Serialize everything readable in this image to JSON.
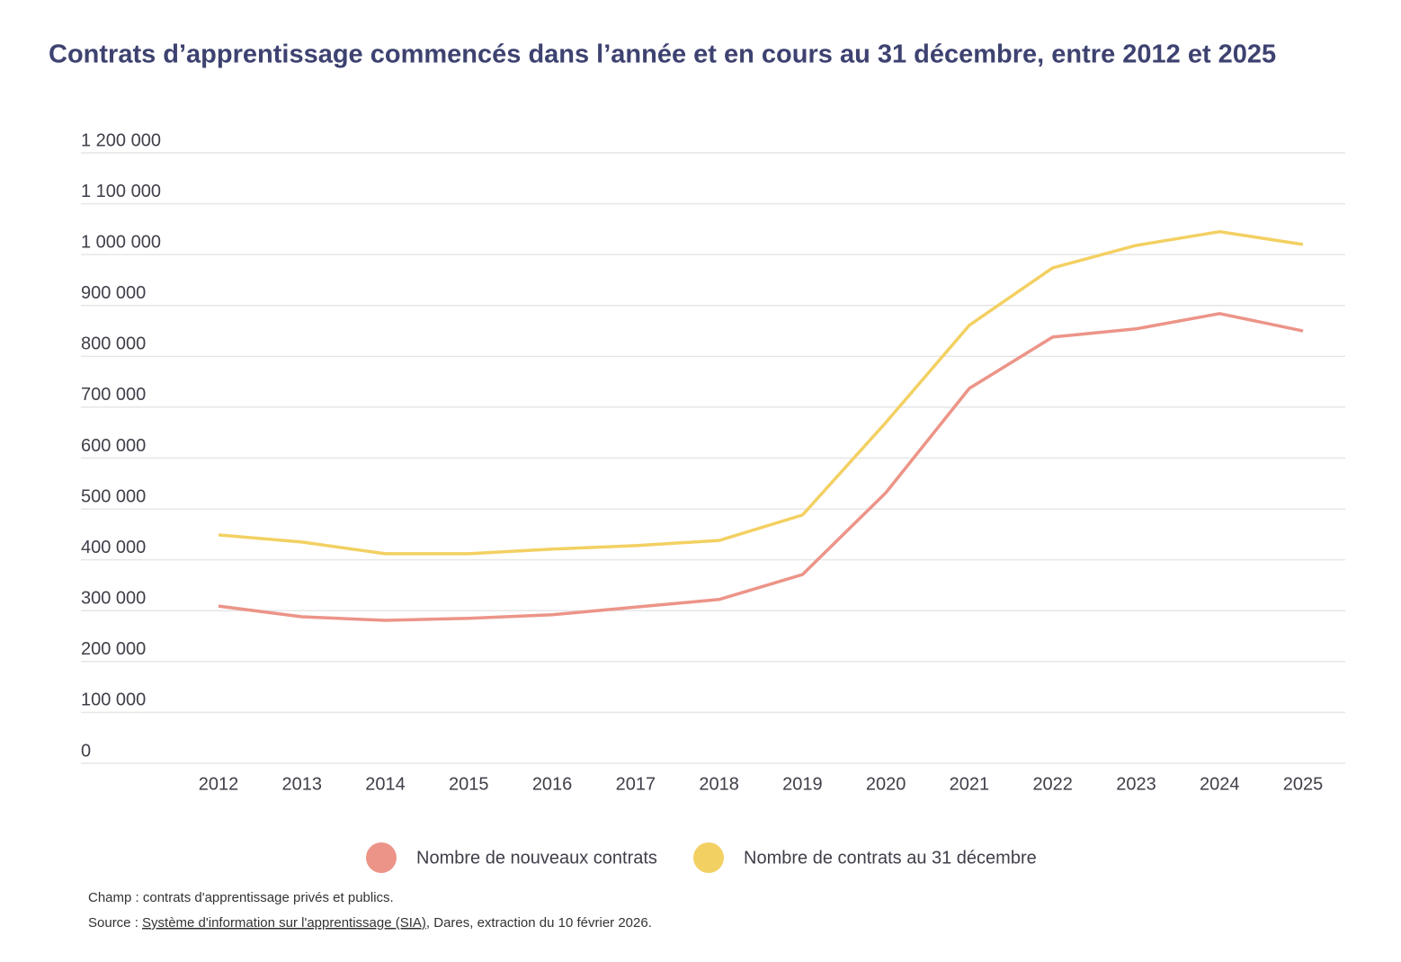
{
  "chart_data": {
    "type": "line",
    "title": "Contrats d’apprentissage commencés dans l’année et en cours au 31 décembre, entre 2012 et 2025",
    "categories": [
      "2012",
      "2013",
      "2014",
      "2015",
      "2016",
      "2017",
      "2018",
      "2019",
      "2020",
      "2021",
      "2022",
      "2023",
      "2024",
      "2025"
    ],
    "series": [
      {
        "name": "Nombre de nouveaux contrats",
        "color": "#ec9488",
        "values": [
          309000,
          288000,
          281000,
          285000,
          292000,
          307000,
          322000,
          371000,
          532000,
          737000,
          838000,
          854000,
          884000,
          850000
        ]
      },
      {
        "name": "Nombre de contrats au 31 décembre",
        "color": "#f3d062",
        "values": [
          449000,
          435000,
          412000,
          412000,
          421000,
          428000,
          438000,
          488000,
          670000,
          861000,
          974000,
          1018000,
          1045000,
          1020000
        ]
      }
    ],
    "ylim": [
      0,
      1200000
    ],
    "yticks": [
      0,
      {
        "value": 100000,
        "label": "100 000"
      },
      {
        "value": 200000,
        "label": "200 000"
      },
      {
        "value": 300000,
        "label": "300 000"
      },
      {
        "value": 400000,
        "label": "400 000"
      },
      {
        "value": 500000,
        "label": "500 000"
      },
      {
        "value": 600000,
        "label": "600 000"
      },
      {
        "value": 700000,
        "label": "700 000"
      },
      {
        "value": 800000,
        "label": "800 000"
      },
      {
        "value": 900000,
        "label": "900 000"
      },
      {
        "value": 1000000,
        "label": "1 000 000"
      },
      {
        "value": 1100000,
        "label": "1 100 000"
      },
      {
        "value": 1200000,
        "label": "1 200 000"
      }
    ],
    "grid": true,
    "legend": "bottom",
    "notes": {
      "field": "Champ : contrats d'apprentissage privés et publics.",
      "source_prefix": "Source : ",
      "source_link": "Système d'information sur l'apprentissage (SIA)",
      "source_suffix": ", Dares, extraction du 10 février 2026."
    }
  }
}
